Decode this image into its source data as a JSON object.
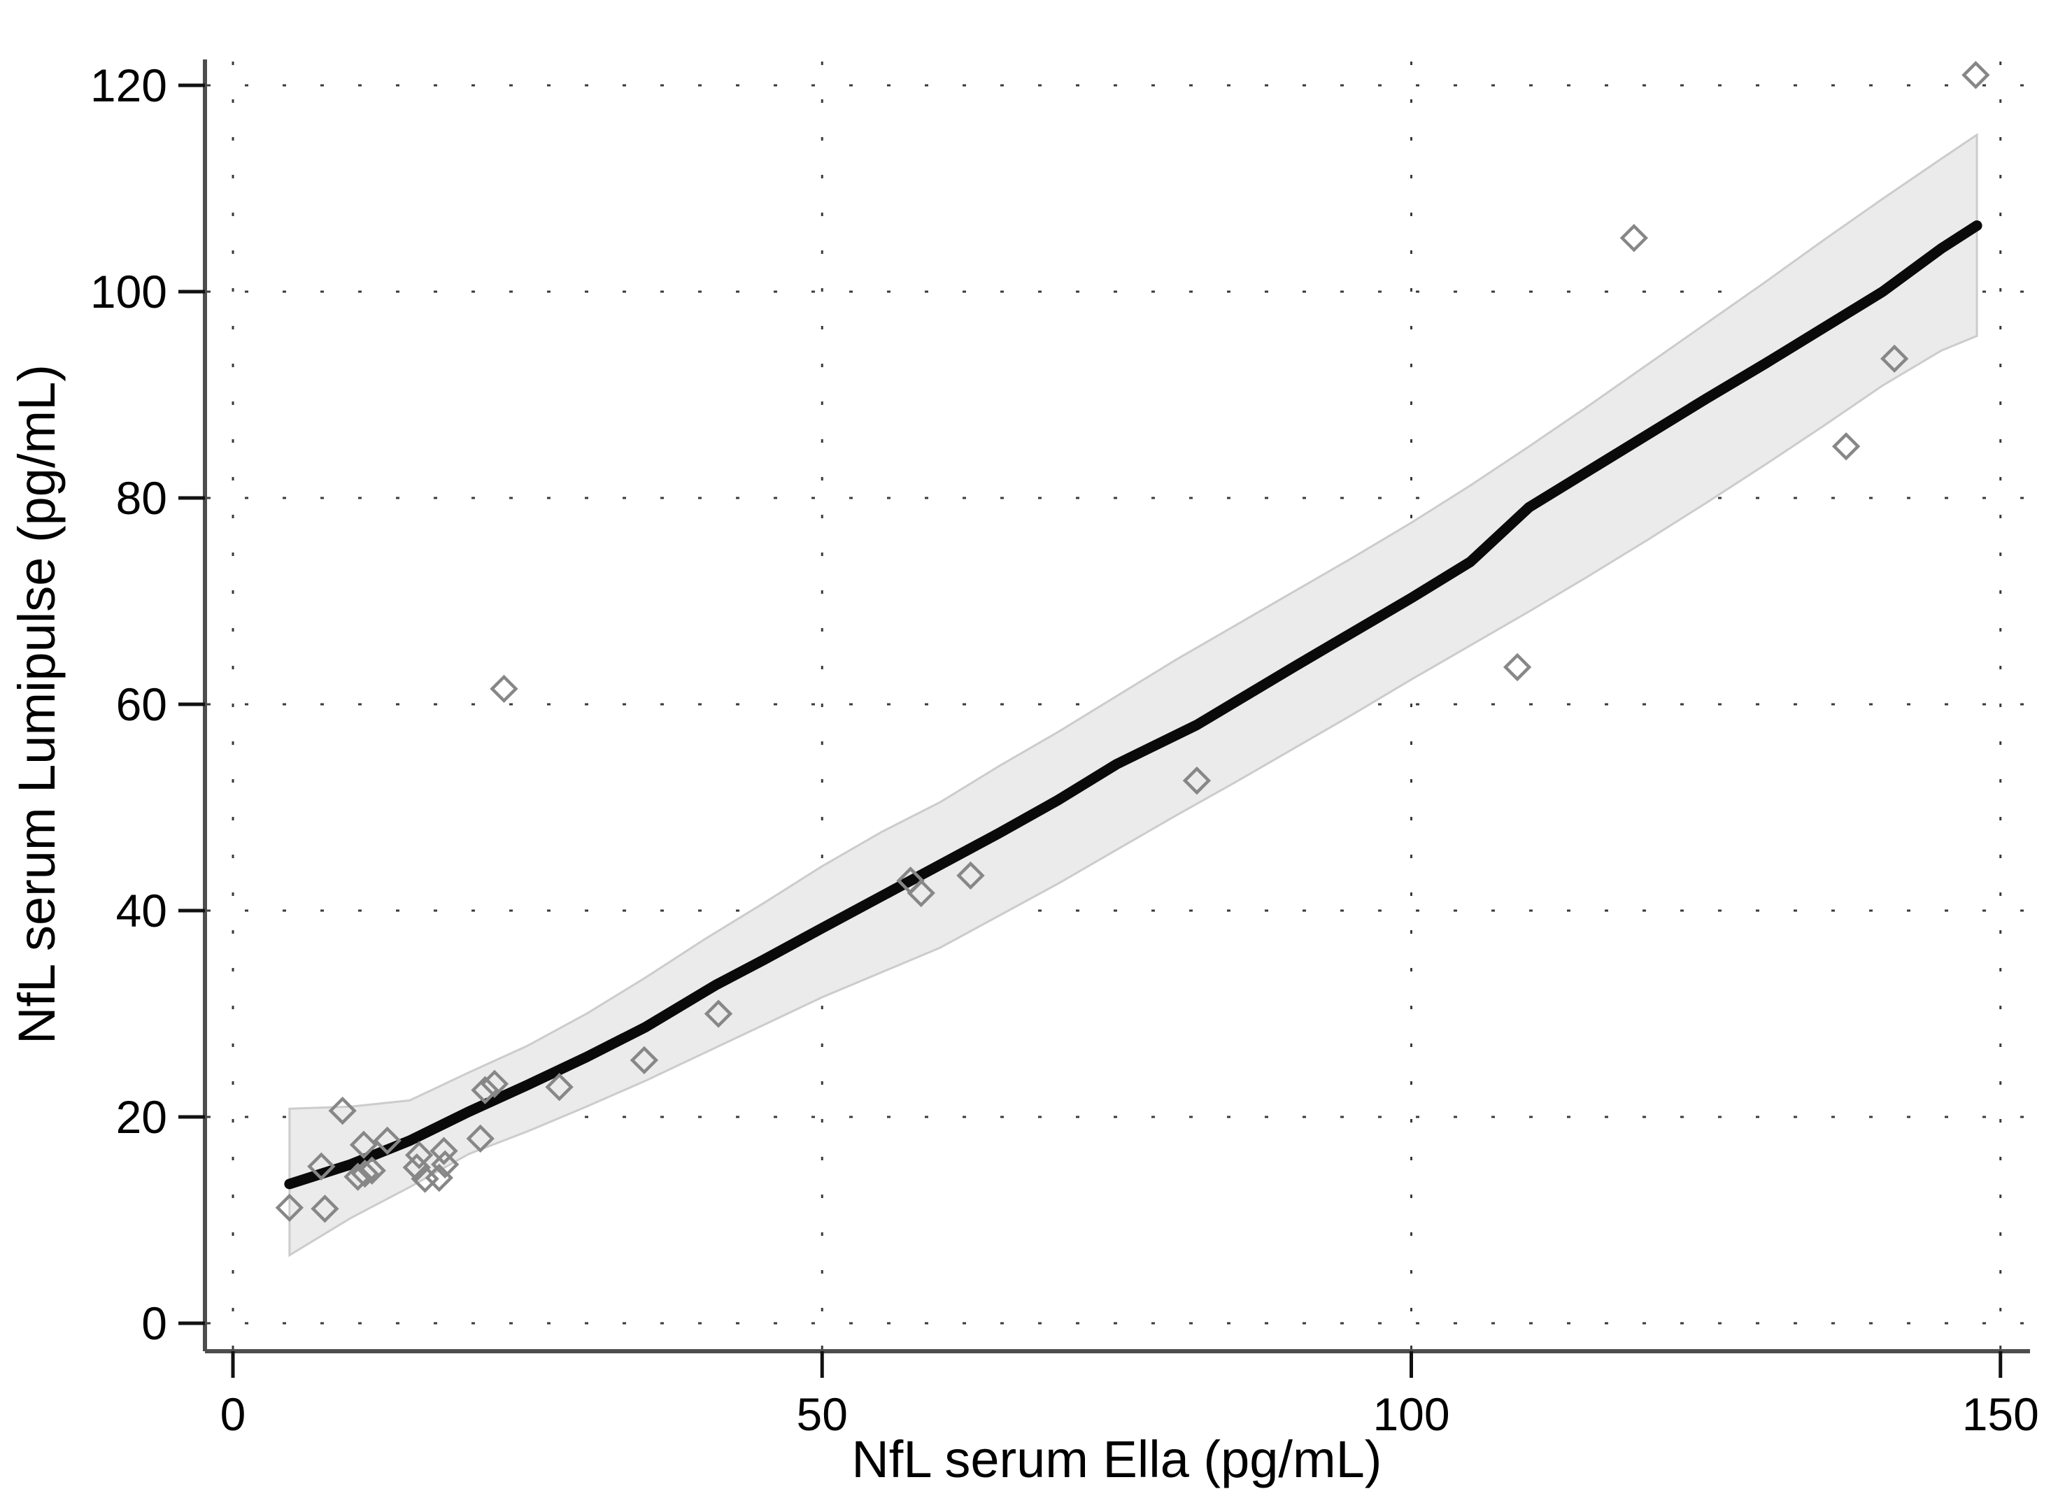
{
  "page": {
    "background": "#ffffff"
  },
  "chart_data": {
    "type": "scatter",
    "title": "",
    "xlabel": "NfL serum Ella (pg/mL)",
    "ylabel": "NfL serum Lumipulse (pg/mL)",
    "x_ticks": [
      0,
      50,
      100,
      150
    ],
    "y_ticks": [
      0,
      20,
      40,
      60,
      80,
      100,
      120
    ],
    "xlim": [
      -2.4,
      152.5
    ],
    "ylim": [
      -2.7,
      122.5
    ],
    "grid": "dotted",
    "legend_position": "none",
    "marker_style": "open-diamond",
    "points": [
      [
        4.8,
        11.2
      ],
      [
        7.8,
        11.1
      ],
      [
        7.5,
        15.2
      ],
      [
        9.3,
        20.6
      ],
      [
        10.6,
        14.2
      ],
      [
        11.2,
        14.5
      ],
      [
        11.8,
        14.8
      ],
      [
        11.1,
        17.3
      ],
      [
        13.1,
        17.7
      ],
      [
        15.6,
        15.1
      ],
      [
        15.8,
        16.3
      ],
      [
        16.3,
        14.0
      ],
      [
        17.5,
        14.1
      ],
      [
        17.9,
        16.7
      ],
      [
        18.0,
        15.4
      ],
      [
        21.0,
        17.9
      ],
      [
        21.4,
        22.6
      ],
      [
        22.2,
        23.2
      ],
      [
        23.0,
        61.5
      ],
      [
        27.7,
        22.9
      ],
      [
        34.9,
        25.5
      ],
      [
        41.2,
        30.0
      ],
      [
        57.5,
        42.9
      ],
      [
        58.4,
        41.7
      ],
      [
        62.6,
        43.4
      ],
      [
        81.8,
        52.6
      ],
      [
        109.0,
        63.6
      ],
      [
        118.9,
        105.2
      ],
      [
        136.9,
        85.0
      ],
      [
        141.0,
        93.5
      ],
      [
        147.9,
        121.0
      ]
    ],
    "trend_line": [
      [
        4.8,
        13.5
      ],
      [
        10,
        15.4
      ],
      [
        15,
        17.7
      ],
      [
        20,
        20.5
      ],
      [
        25,
        23.1
      ],
      [
        30,
        25.8
      ],
      [
        35,
        28.7
      ],
      [
        41,
        32.8
      ],
      [
        45,
        35.2
      ],
      [
        50,
        38.3
      ],
      [
        57.5,
        42.9
      ],
      [
        65,
        47.5
      ],
      [
        70,
        50.7
      ],
      [
        75,
        54.2
      ],
      [
        81.8,
        58.0
      ],
      [
        90,
        63.6
      ],
      [
        100,
        70.3
      ],
      [
        105,
        73.8
      ],
      [
        110,
        79.1
      ],
      [
        115,
        82.6
      ],
      [
        120,
        86.1
      ],
      [
        125,
        89.6
      ],
      [
        130,
        93.0
      ],
      [
        135,
        96.5
      ],
      [
        140,
        100.0
      ],
      [
        145,
        104.2
      ],
      [
        148,
        106.4
      ]
    ],
    "ci_upper": [
      [
        4.8,
        20.8
      ],
      [
        10,
        21.0
      ],
      [
        15,
        21.6
      ],
      [
        20,
        24.3
      ],
      [
        25,
        26.9
      ],
      [
        30,
        30.0
      ],
      [
        35,
        33.5
      ],
      [
        40,
        37.2
      ],
      [
        45,
        40.7
      ],
      [
        50,
        44.3
      ],
      [
        55,
        47.6
      ],
      [
        60,
        50.5
      ],
      [
        65,
        54.0
      ],
      [
        70,
        57.3
      ],
      [
        75,
        60.8
      ],
      [
        80,
        64.3
      ],
      [
        85,
        67.6
      ],
      [
        90,
        70.9
      ],
      [
        95,
        74.2
      ],
      [
        100,
        77.6
      ],
      [
        105,
        81.2
      ],
      [
        110,
        85.0
      ],
      [
        115,
        88.9
      ],
      [
        120,
        92.9
      ],
      [
        125,
        96.9
      ],
      [
        130,
        100.9
      ],
      [
        135,
        105.0
      ],
      [
        140,
        109.0
      ],
      [
        145,
        112.9
      ],
      [
        148,
        115.2
      ]
    ],
    "ci_lower": [
      [
        4.8,
        6.6
      ],
      [
        10,
        10.2
      ],
      [
        15,
        13.2
      ],
      [
        20,
        16.4
      ],
      [
        25,
        18.6
      ],
      [
        30,
        21.0
      ],
      [
        35,
        23.5
      ],
      [
        40,
        26.2
      ],
      [
        45,
        28.9
      ],
      [
        50,
        31.6
      ],
      [
        55,
        34.0
      ],
      [
        60,
        36.4
      ],
      [
        65,
        39.5
      ],
      [
        70,
        42.6
      ],
      [
        75,
        45.9
      ],
      [
        80,
        49.2
      ],
      [
        85,
        52.4
      ],
      [
        90,
        55.7
      ],
      [
        95,
        59.0
      ],
      [
        100,
        62.4
      ],
      [
        105,
        65.7
      ],
      [
        110,
        69.0
      ],
      [
        115,
        72.4
      ],
      [
        120,
        75.9
      ],
      [
        125,
        79.5
      ],
      [
        130,
        83.2
      ],
      [
        135,
        87.0
      ],
      [
        140,
        90.9
      ],
      [
        145,
        94.3
      ],
      [
        148,
        95.7
      ]
    ],
    "colors": {
      "marker": "#878787",
      "trend": "#0a0a0a",
      "band_fill": "#ebebeb",
      "band_edge": "#cccccc",
      "grid": "#3a3a3a",
      "axis": "#4d4d4d",
      "tick": "#111111",
      "text": "#000000",
      "background": "#ffffff"
    }
  }
}
